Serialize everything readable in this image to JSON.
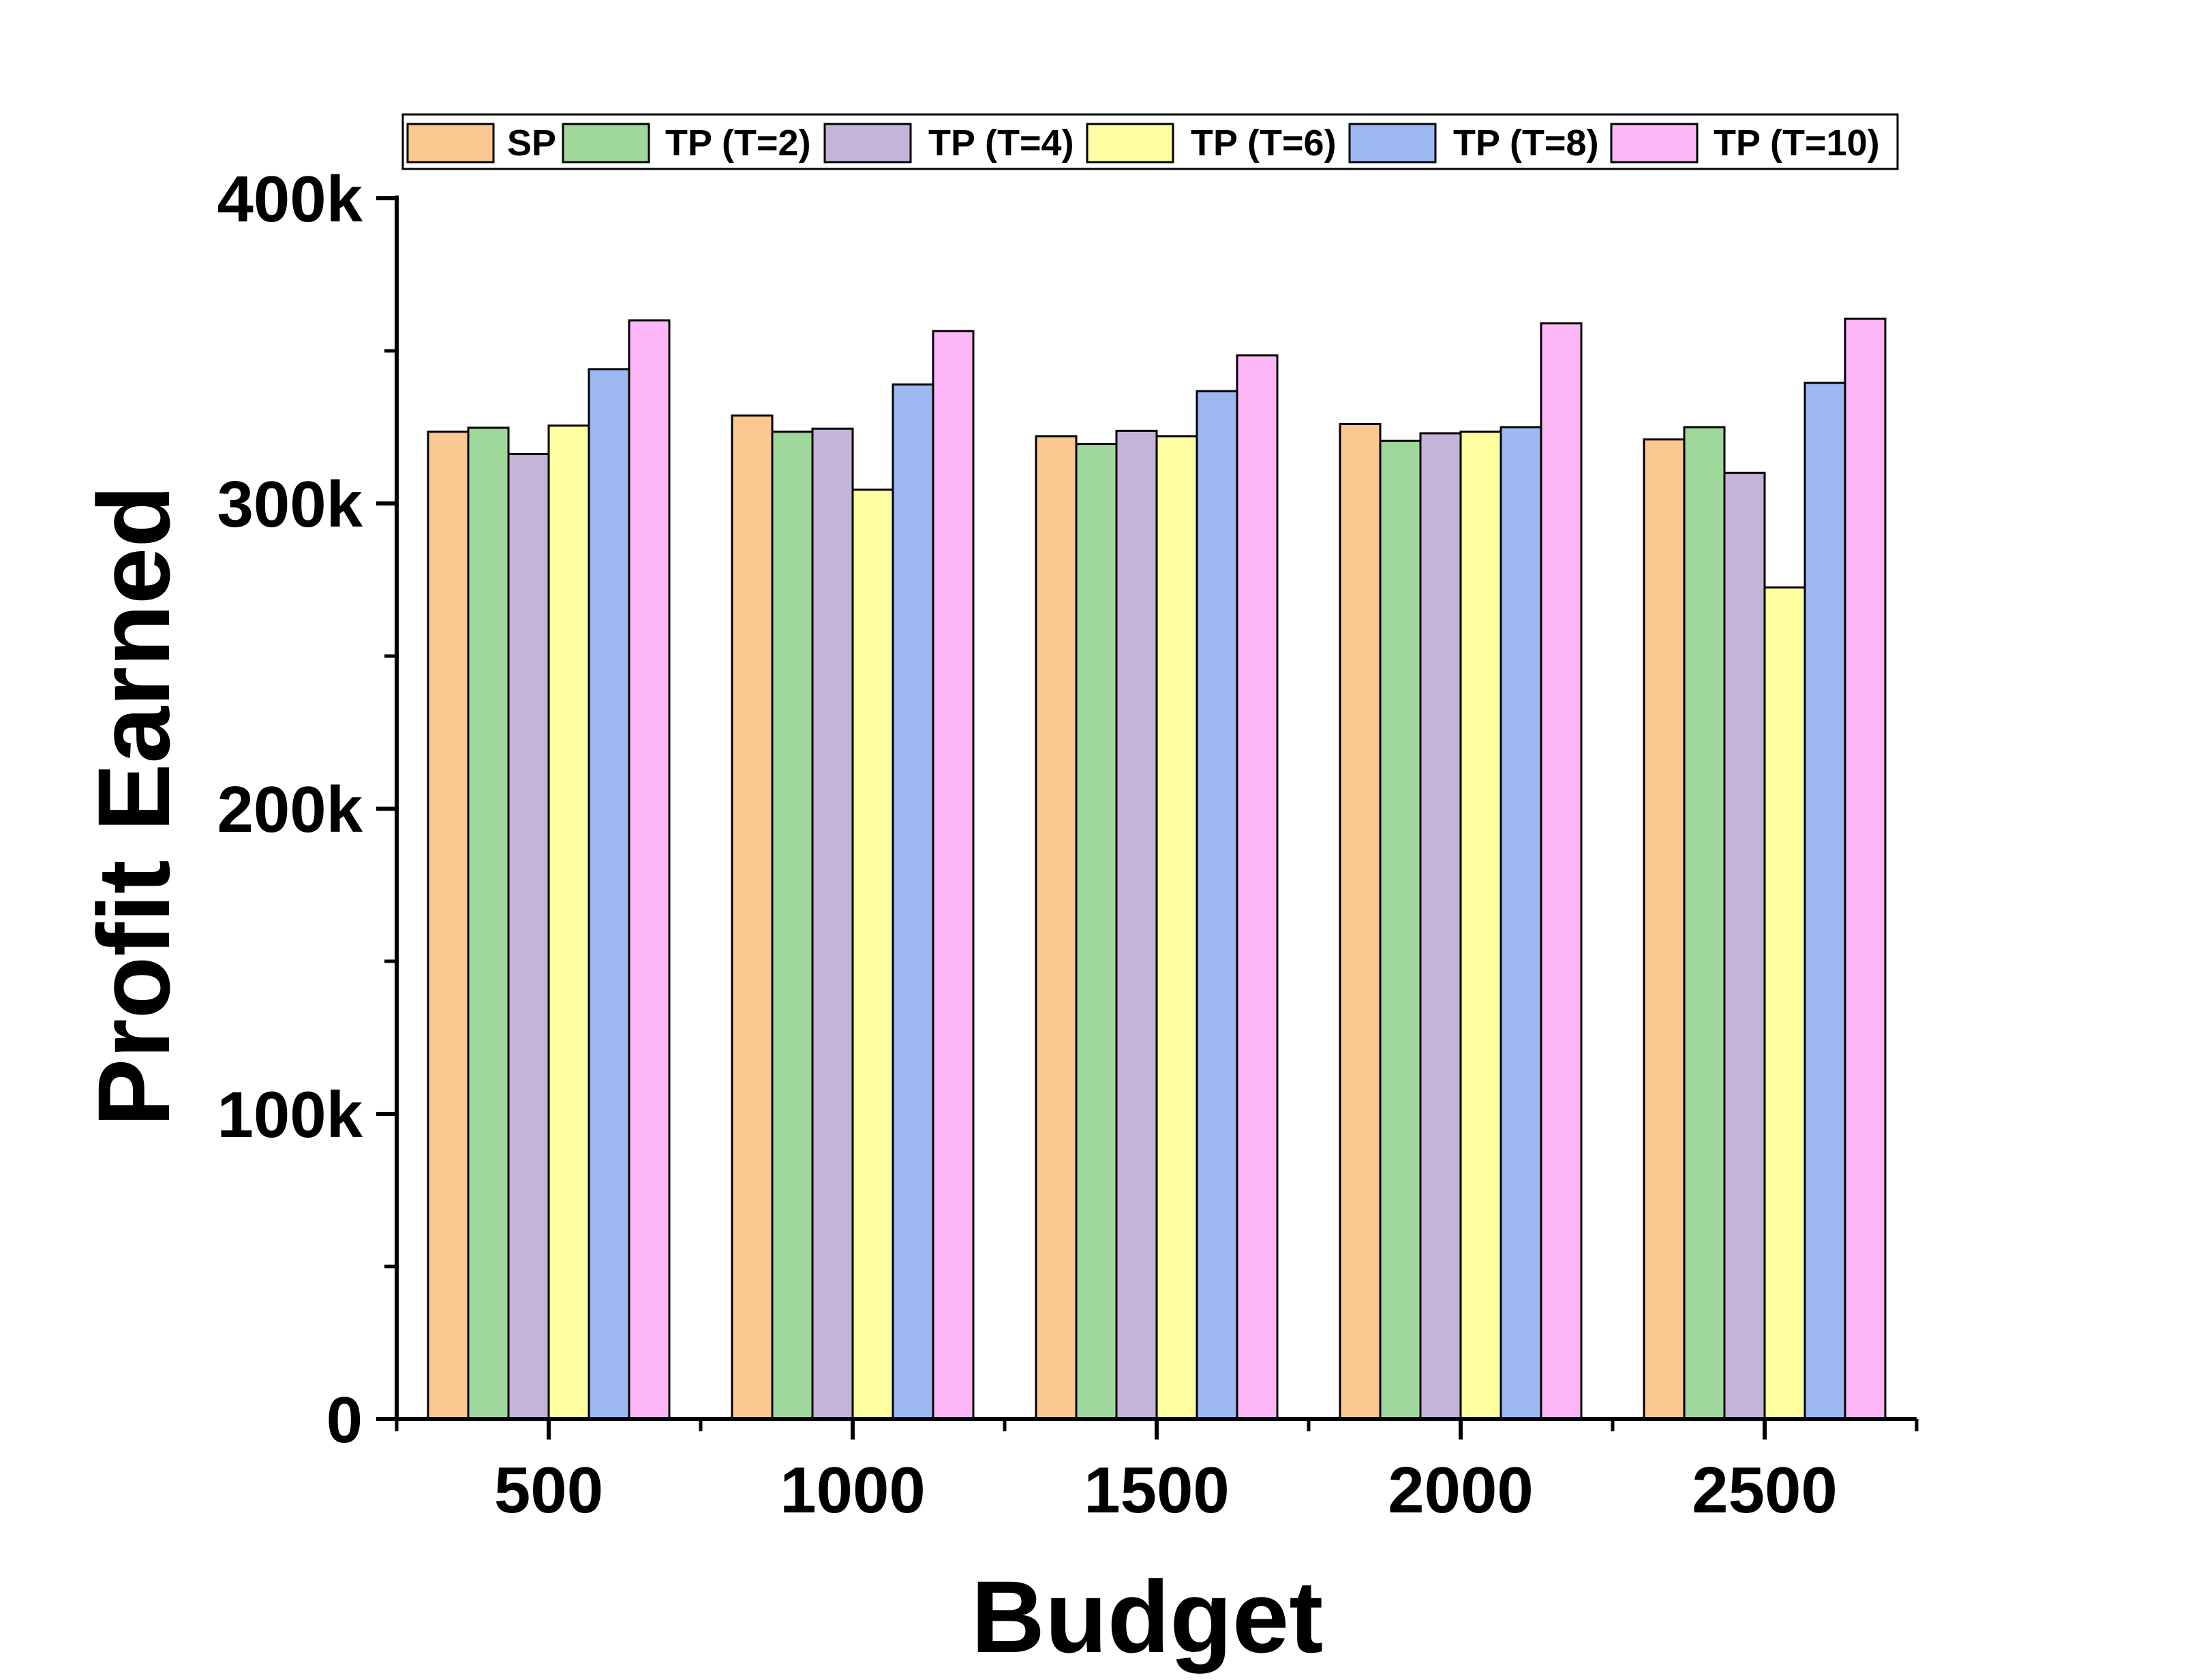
{
  "chart_data": {
    "type": "bar",
    "title": "",
    "xlabel": "Budget",
    "ylabel": "Profit Earned",
    "categories": [
      "500",
      "1000",
      "1500",
      "2000",
      "2500"
    ],
    "ylim": [
      0,
      400000
    ],
    "yticks": [
      0,
      100000,
      200000,
      300000,
      400000
    ],
    "ytick_labels": [
      "0",
      "100k",
      "200k",
      "300k",
      "400k"
    ],
    "legend_position": "top",
    "grid": false,
    "series": [
      {
        "name": "SP",
        "color": "#FCC892",
        "values": [
          323500,
          328800,
          322000,
          326000,
          321000
        ]
      },
      {
        "name": "TP (T=2)",
        "color": "#A0D89C",
        "values": [
          324800,
          323500,
          319500,
          320500,
          325000
        ]
      },
      {
        "name": "TP (T=4)",
        "color": "#C5B3D8",
        "values": [
          316200,
          324500,
          323800,
          323000,
          310000
        ]
      },
      {
        "name": "TP (T=6)",
        "color": "#FEFEA0",
        "values": [
          325500,
          304500,
          322000,
          323500,
          272500
        ]
      },
      {
        "name": "TP (T=8)",
        "color": "#9DB9F2",
        "values": [
          344000,
          339000,
          336800,
          325000,
          339500
        ]
      },
      {
        "name": "TP (T=10)",
        "color": "#FDB7F7",
        "values": [
          360000,
          356500,
          348500,
          359000,
          360500
        ]
      }
    ]
  }
}
